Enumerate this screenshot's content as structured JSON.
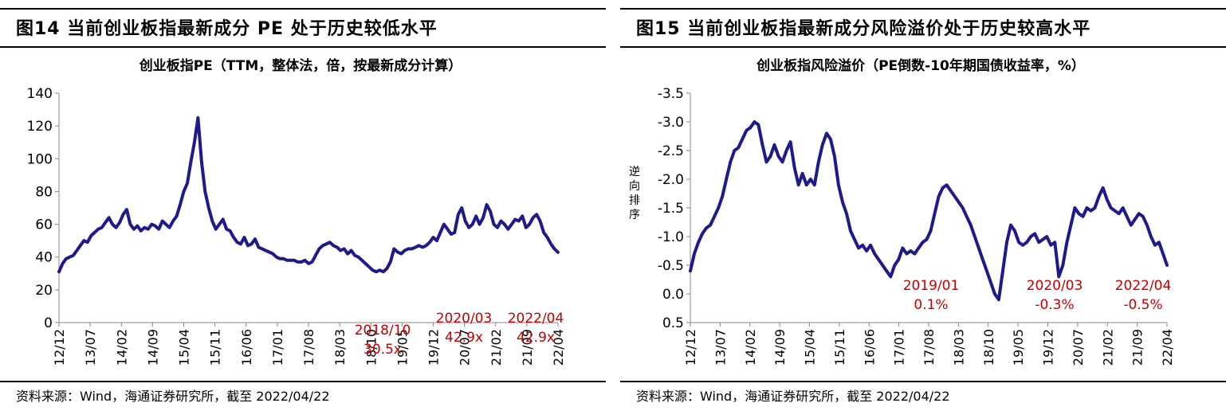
{
  "panels": [
    {
      "figure_title": "图14 当前创业板指最新成分 PE 处于历史较低水平",
      "source": "资料来源：Wind，海通证券研究所，截至 2022/04/22"
    },
    {
      "figure_title": "图15 当前创业板指最新成分风险溢价处于历史较高水平",
      "source": "资料来源：Wind，海通证券研究所，截至 2022/04/22"
    }
  ],
  "chart_data": [
    {
      "type": "line",
      "title": "创业板指PE（TTM，整体法，倍，按最新成分计算）",
      "ylabel": "",
      "xlabel": "",
      "ylim": [
        0,
        140
      ],
      "yticks": [
        "0",
        "20",
        "40",
        "60",
        "80",
        "100",
        "120",
        "140"
      ],
      "yticks_values": [
        0,
        20,
        40,
        60,
        80,
        100,
        120,
        140
      ],
      "xticks": [
        "12/12",
        "13/07",
        "14/02",
        "14/09",
        "15/04",
        "15/11",
        "16/06",
        "17/01",
        "17/08",
        "18/03",
        "18/10",
        "19/05",
        "19/12",
        "20/07",
        "21/02",
        "21/09",
        "22/04"
      ],
      "x_start": "2012-12",
      "x_end": "2022-04",
      "grid": false,
      "line_color": "#1F1A8C",
      "annotation_color": "#C00000",
      "series": [
        {
          "values": [
            31,
            36,
            39,
            40,
            41,
            44,
            47,
            50,
            49,
            53,
            55,
            57,
            58,
            61,
            64,
            60,
            58,
            61,
            66,
            69,
            60,
            57,
            59,
            56,
            58,
            57,
            60,
            59,
            57,
            62,
            60,
            58,
            62,
            65,
            72,
            80,
            85,
            98,
            110,
            125,
            98,
            80,
            70,
            62,
            57,
            60,
            63,
            57,
            56,
            52,
            49,
            48,
            52,
            47,
            48,
            51,
            46,
            45,
            44,
            43,
            42,
            40,
            39,
            39,
            38,
            38,
            38,
            37,
            37,
            38,
            36,
            37,
            41,
            45,
            47,
            48,
            49,
            47,
            46,
            44,
            45,
            42,
            44,
            41,
            40,
            38,
            36,
            34,
            32,
            31,
            32,
            31,
            33,
            37,
            45,
            43,
            42,
            44,
            45,
            45,
            46,
            47,
            46,
            47,
            49,
            52,
            50,
            55,
            60,
            57,
            54,
            55,
            66,
            70,
            62,
            58,
            60,
            65,
            60,
            64,
            72,
            68,
            60,
            58,
            62,
            60,
            57,
            60,
            63,
            62,
            65,
            58,
            60,
            64,
            66,
            62,
            55,
            52,
            48,
            45,
            42.9
          ]
        }
      ],
      "annotations": [
        {
          "x": "2018/10",
          "y": 30.5,
          "lines": [
            "2018/10",
            "30.5x"
          ]
        },
        {
          "x": "2020/03",
          "y": 42.9,
          "lines": [
            "2020/03",
            "42.9x"
          ]
        },
        {
          "x": "2022/04",
          "y": 42.9,
          "lines": [
            "2022/04",
            "42.9x"
          ]
        }
      ]
    },
    {
      "type": "line",
      "title": "创业板指风险溢价（PE倒数-10年期国债收益率，%）",
      "ylabel": "逆向排序",
      "xlabel": "",
      "ylim": [
        0.5,
        -3.5
      ],
      "y_inverted": true,
      "yticks": [
        "-3.5",
        "-3.0",
        "-2.5",
        "-2.0",
        "-1.5",
        "-1.0",
        "-0.5",
        "0.0",
        "0.5"
      ],
      "yticks_values": [
        -3.5,
        -3.0,
        -2.5,
        -2.0,
        -1.5,
        -1.0,
        -0.5,
        0.0,
        0.5
      ],
      "xticks": [
        "12/12",
        "13/07",
        "14/02",
        "14/09",
        "15/04",
        "15/11",
        "16/06",
        "17/01",
        "17/08",
        "18/03",
        "18/10",
        "19/05",
        "19/12",
        "20/07",
        "21/02",
        "21/09",
        "22/04"
      ],
      "x_start": "2012-12",
      "x_end": "2022-04",
      "grid": false,
      "line_color": "#1F1A8C",
      "annotation_color": "#C00000",
      "series": [
        {
          "values": [
            -0.4,
            -0.7,
            -0.9,
            -1.05,
            -1.15,
            -1.2,
            -1.35,
            -1.5,
            -1.7,
            -2.0,
            -2.3,
            -2.5,
            -2.55,
            -2.7,
            -2.85,
            -2.9,
            -3.0,
            -2.95,
            -2.6,
            -2.3,
            -2.4,
            -2.6,
            -2.4,
            -2.3,
            -2.5,
            -2.65,
            -2.2,
            -1.9,
            -2.1,
            -1.9,
            -2.0,
            -1.9,
            -2.3,
            -2.6,
            -2.8,
            -2.7,
            -2.4,
            -1.9,
            -1.6,
            -1.4,
            -1.1,
            -0.95,
            -0.8,
            -0.85,
            -0.75,
            -0.85,
            -0.7,
            -0.6,
            -0.5,
            -0.4,
            -0.3,
            -0.5,
            -0.6,
            -0.8,
            -0.7,
            -0.75,
            -0.7,
            -0.8,
            -0.9,
            -0.95,
            -1.1,
            -1.4,
            -1.7,
            -1.85,
            -1.9,
            -1.8,
            -1.7,
            -1.6,
            -1.5,
            -1.35,
            -1.2,
            -1.0,
            -0.8,
            -0.6,
            -0.4,
            -0.2,
            0.0,
            0.1,
            -0.4,
            -0.9,
            -1.2,
            -1.1,
            -0.9,
            -0.85,
            -0.9,
            -1.0,
            -1.05,
            -0.9,
            -0.95,
            -1.0,
            -0.85,
            -0.9,
            -0.3,
            -0.5,
            -0.9,
            -1.2,
            -1.5,
            -1.4,
            -1.35,
            -1.5,
            -1.45,
            -1.5,
            -1.7,
            -1.85,
            -1.65,
            -1.5,
            -1.45,
            -1.4,
            -1.5,
            -1.35,
            -1.2,
            -1.3,
            -1.4,
            -1.35,
            -1.2,
            -1.0,
            -0.85,
            -0.9,
            -0.7,
            -0.5
          ]
        }
      ],
      "annotations": [
        {
          "x": "2019/01",
          "y": 0.1,
          "lines": [
            "2019/01",
            "0.1%"
          ]
        },
        {
          "x": "2020/03",
          "y": -0.3,
          "lines": [
            "2020/03",
            "-0.3%"
          ]
        },
        {
          "x": "2022/04",
          "y": -0.5,
          "lines": [
            "2022/04",
            "-0.5%"
          ]
        }
      ]
    }
  ]
}
